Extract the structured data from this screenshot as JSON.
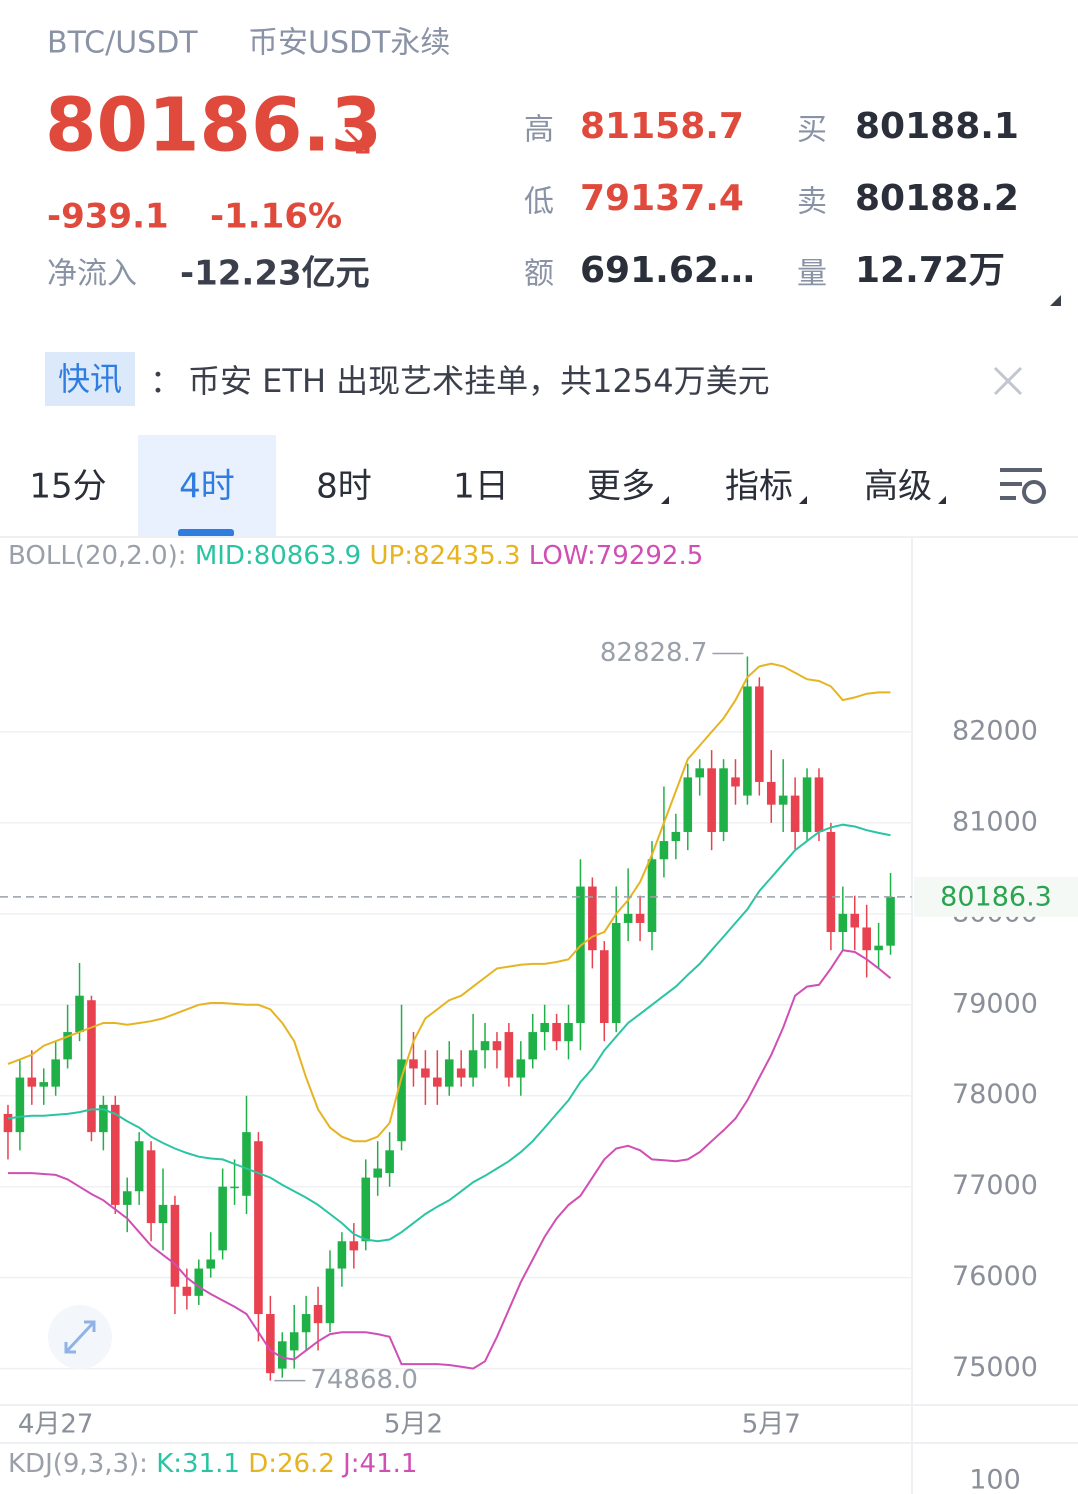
{
  "header": {
    "pair": "BTC/USDT",
    "market": "币安USDT永续",
    "price": "80186.3",
    "change": "-939.1",
    "change_pct": "-1.16%",
    "net_inflow_label": "净流入",
    "net_inflow": "-12.23亿元",
    "stats": [
      {
        "label": "高",
        "value": "81158.7"
      },
      {
        "label": "低",
        "value": "79137.4"
      },
      {
        "label": "额",
        "value": "691.62…"
      },
      {
        "label": "买",
        "value": "80188.1"
      },
      {
        "label": "卖",
        "value": "80188.2"
      },
      {
        "label": "量",
        "value": "12.72万"
      }
    ]
  },
  "news": {
    "tag": "快讯",
    "colon": "：",
    "text": "币安 ETH 出现艺术挂单，共1254万美元"
  },
  "tabs": [
    "15分",
    "4时",
    "8时",
    "1日",
    "更多",
    "指标",
    "高级"
  ],
  "indicator_labels": {
    "boll": [
      "BOLL(20,2.0):",
      "MID:80863.9",
      "UP:82435.3",
      "LOW:79292.5"
    ],
    "kdj": [
      "KDJ(9,3,3):",
      "K:31.1",
      "D:26.2",
      "J:41.1"
    ],
    "kdj_yticks": [
      100
    ]
  },
  "chart_data": {
    "type": "candlestick",
    "categories": [
      null,
      null,
      null,
      null,
      "4月27",
      null,
      null,
      null,
      null,
      null,
      null,
      null,
      null,
      null,
      null,
      null,
      null,
      null,
      null,
      null,
      null,
      null,
      null,
      null,
      null,
      null,
      null,
      null,
      null,
      null,
      null,
      null,
      null,
      null,
      "5月2",
      null,
      null,
      null,
      null,
      null,
      null,
      null,
      null,
      null,
      null,
      null,
      null,
      null,
      null,
      null,
      null,
      null,
      null,
      null,
      null,
      null,
      null,
      null,
      null,
      null,
      null,
      null,
      null,
      null,
      "5月7",
      null,
      null,
      null,
      null,
      null,
      null,
      null,
      null,
      null,
      null
    ],
    "open": [
      77800,
      77600,
      78200,
      78100,
      78100,
      78400,
      78700,
      79050,
      77600,
      77900,
      76800,
      76950,
      77400,
      76600,
      76800,
      75900,
      75800,
      76100,
      76300,
      77000,
      76900,
      77500,
      75600,
      75000,
      75200,
      75400,
      75700,
      75500,
      76100,
      76400,
      76400,
      77100,
      77150,
      77500,
      78400,
      78300,
      78200,
      78100,
      78300,
      78200,
      78500,
      78600,
      78700,
      78200,
      78400,
      78700,
      78800,
      78600,
      78800,
      80300,
      79600,
      78800,
      79900,
      80000,
      79800,
      80600,
      80800,
      80900,
      81500,
      81600,
      80900,
      81500,
      81300,
      82500,
      81450,
      81200,
      81300,
      80900,
      81500,
      80900,
      79800,
      80000,
      79850,
      79600,
      79650
    ],
    "high": [
      77900,
      78400,
      78500,
      78300,
      78600,
      79000,
      79460,
      79100,
      78000,
      78000,
      77100,
      77600,
      77500,
      77200,
      76900,
      76100,
      76200,
      76500,
      77200,
      77300,
      78000,
      77600,
      75800,
      75400,
      75700,
      75800,
      75900,
      76300,
      76500,
      76600,
      77300,
      77500,
      77600,
      79000,
      78700,
      78500,
      78500,
      78600,
      78500,
      78900,
      78800,
      78700,
      78800,
      78600,
      78900,
      79000,
      78900,
      79000,
      80600,
      80400,
      79700,
      80300,
      80500,
      80200,
      80800,
      81400,
      81100,
      81650,
      81700,
      81800,
      81700,
      81700,
      82828.7,
      82600,
      81800,
      81700,
      81500,
      81600,
      81600,
      81000,
      80300,
      80200,
      80100,
      79900,
      80450
    ],
    "low": [
      77300,
      77400,
      77900,
      77900,
      78000,
      78300,
      78600,
      77500,
      77400,
      76700,
      76500,
      76800,
      76400,
      76300,
      75600,
      75650,
      75700,
      76000,
      76200,
      76800,
      76700,
      75300,
      74868,
      74900,
      75000,
      75200,
      75200,
      75400,
      75900,
      76100,
      76300,
      76900,
      77000,
      77400,
      78100,
      77900,
      77900,
      78000,
      78100,
      78100,
      78300,
      78300,
      78100,
      78000,
      78300,
      78500,
      78500,
      78400,
      78500,
      79400,
      78600,
      78700,
      79700,
      79700,
      79600,
      80400,
      80600,
      80700,
      81300,
      80700,
      80800,
      81200,
      81200,
      81300,
      81000,
      80900,
      80700,
      80800,
      80800,
      79600,
      79600,
      79600,
      79300,
      79400,
      79550
    ],
    "close": [
      77600,
      78200,
      78100,
      78150,
      78400,
      78700,
      79100,
      77600,
      77900,
      76800,
      76950,
      77500,
      76600,
      76800,
      75900,
      75800,
      76100,
      76200,
      77000,
      77000,
      77600,
      75600,
      74950,
      75300,
      75400,
      75600,
      75500,
      76100,
      76400,
      76300,
      77100,
      77200,
      77400,
      78400,
      78300,
      78200,
      78100,
      78400,
      78200,
      78500,
      78600,
      78500,
      78200,
      78400,
      78700,
      78800,
      78600,
      78800,
      80300,
      79600,
      78800,
      79900,
      80000,
      79900,
      80600,
      80800,
      80900,
      81500,
      81600,
      80900,
      81600,
      81400,
      82500,
      81450,
      81200,
      81300,
      80900,
      81500,
      80900,
      79800,
      80000,
      79850,
      79600,
      79650,
      80186.3
    ],
    "up_color": "#20b048",
    "down_color": "#e8414f",
    "series": [
      {
        "color": "#2bc4a3",
        "values": [
          77750,
          77770,
          77780,
          77780,
          77790,
          77800,
          77820,
          77850,
          77850,
          77800,
          77720,
          77650,
          77550,
          77480,
          77420,
          77370,
          77330,
          77310,
          77300,
          77250,
          77200,
          77150,
          77100,
          77020,
          76950,
          76880,
          76800,
          76700,
          76600,
          76480,
          76420,
          76400,
          76420,
          76500,
          76600,
          76700,
          76780,
          76850,
          76950,
          77050,
          77120,
          77200,
          77280,
          77380,
          77500,
          77650,
          77800,
          77950,
          78150,
          78300,
          78500,
          78650,
          78800,
          78900,
          79000,
          79100,
          79200,
          79330,
          79450,
          79600,
          79750,
          79900,
          80050,
          80250,
          80400,
          80550,
          80700,
          80800,
          80900,
          80950,
          80980,
          80960,
          80920,
          80890,
          80864
        ]
      },
      {
        "color": "#e6b422",
        "values": [
          78350,
          78400,
          78450,
          78550,
          78600,
          78650,
          78700,
          78750,
          78800,
          78800,
          78780,
          78800,
          78820,
          78850,
          78900,
          78950,
          79000,
          79020,
          79020,
          79010,
          79000,
          79000,
          78950,
          78800,
          78600,
          78200,
          77850,
          77650,
          77550,
          77500,
          77500,
          77550,
          77700,
          78200,
          78600,
          78850,
          78950,
          79050,
          79100,
          79200,
          79300,
          79400,
          79420,
          79440,
          79450,
          79450,
          79470,
          79500,
          79650,
          79750,
          79800,
          80000,
          80150,
          80350,
          80650,
          81000,
          81350,
          81700,
          81850,
          82000,
          82150,
          82350,
          82600,
          82720,
          82750,
          82720,
          82650,
          82580,
          82560,
          82500,
          82350,
          82380,
          82420,
          82435,
          82435
        ]
      },
      {
        "color": "#d04fb4",
        "values": [
          77150,
          77150,
          77150,
          77140,
          77130,
          77080,
          77000,
          76920,
          76850,
          76750,
          76650,
          76500,
          76350,
          76250,
          76150,
          76000,
          75900,
          75820,
          75750,
          75680,
          75600,
          75400,
          75200,
          75120,
          75100,
          75200,
          75300,
          75380,
          75400,
          75400,
          75400,
          75380,
          75350,
          75050,
          75050,
          75050,
          75050,
          75040,
          75020,
          75000,
          75080,
          75350,
          75650,
          75950,
          76200,
          76450,
          76650,
          76800,
          76900,
          77100,
          77300,
          77420,
          77450,
          77400,
          77300,
          77290,
          77280,
          77300,
          77380,
          77500,
          77620,
          77750,
          77950,
          78200,
          78450,
          78750,
          79100,
          79200,
          79220,
          79400,
          79600,
          79580,
          79500,
          79400,
          79292
        ]
      }
    ],
    "high_label": "82828.7",
    "low_label": "74868.0",
    "last_price": 80186.3,
    "last_price_color": "#2aa44f",
    "ylim": [
      74600,
      84110
    ],
    "yticks": [
      75000,
      76000,
      77000,
      78000,
      79000,
      80000,
      81000,
      82000
    ],
    "grid": true
  }
}
